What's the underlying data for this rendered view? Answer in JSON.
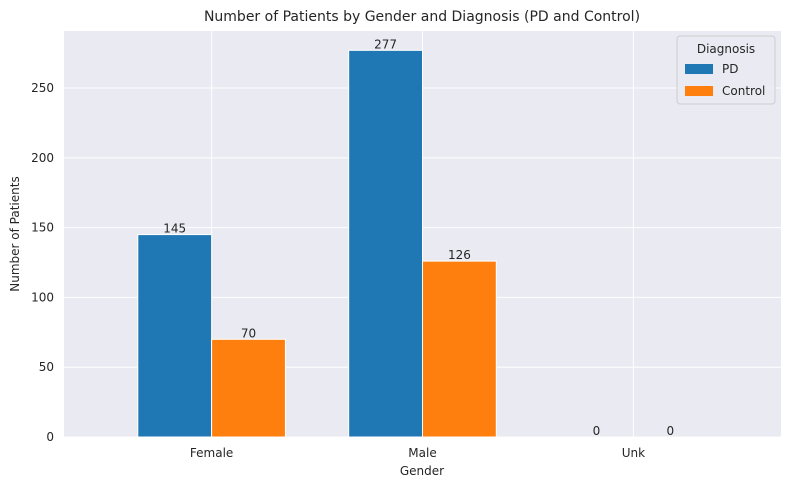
{
  "chart_data": {
    "type": "bar",
    "title": "Number of Patients by Gender and Diagnosis (PD and Control)",
    "xlabel": "Gender",
    "ylabel": "Number of Patients",
    "categories": [
      "Female",
      "Male",
      "Unk"
    ],
    "series": [
      {
        "name": "PD",
        "values": [
          145,
          277,
          0
        ],
        "color": "#1f77b4"
      },
      {
        "name": "Control",
        "values": [
          70,
          126,
          0
        ],
        "color": "#ff7f0e"
      }
    ],
    "ylim": [
      0,
      290.85
    ],
    "yticks": [
      0,
      50,
      100,
      150,
      200,
      250
    ],
    "grid": true,
    "legend": {
      "title": "Diagnosis",
      "placement": "top-right"
    },
    "background": "#eaeaf2"
  }
}
